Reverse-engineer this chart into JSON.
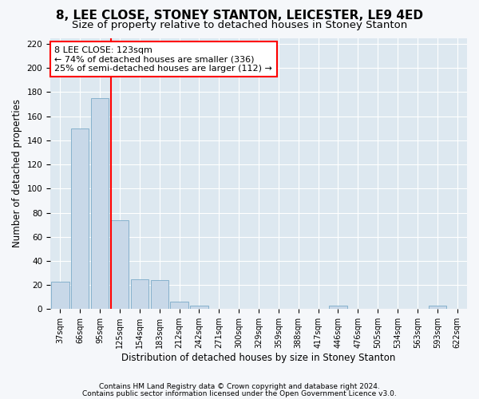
{
  "title": "8, LEE CLOSE, STONEY STANTON, LEICESTER, LE9 4ED",
  "subtitle": "Size of property relative to detached houses in Stoney Stanton",
  "xlabel": "Distribution of detached houses by size in Stoney Stanton",
  "ylabel": "Number of detached properties",
  "categories": [
    "37sqm",
    "66sqm",
    "95sqm",
    "125sqm",
    "154sqm",
    "183sqm",
    "212sqm",
    "242sqm",
    "271sqm",
    "300sqm",
    "329sqm",
    "359sqm",
    "388sqm",
    "417sqm",
    "446sqm",
    "476sqm",
    "505sqm",
    "534sqm",
    "563sqm",
    "593sqm",
    "622sqm"
  ],
  "values": [
    23,
    150,
    175,
    74,
    25,
    24,
    6,
    3,
    0,
    0,
    0,
    0,
    0,
    0,
    3,
    0,
    0,
    0,
    0,
    3,
    0
  ],
  "bar_color": "#c8d8e8",
  "bar_edge_color": "#7aaac8",
  "red_line_index": 3,
  "annotation_lines": [
    "8 LEE CLOSE: 123sqm",
    "← 74% of detached houses are smaller (336)",
    "25% of semi-detached houses are larger (112) →"
  ],
  "ylim": [
    0,
    225
  ],
  "yticks": [
    0,
    20,
    40,
    60,
    80,
    100,
    120,
    140,
    160,
    180,
    200,
    220
  ],
  "footer1": "Contains HM Land Registry data © Crown copyright and database right 2024.",
  "footer2": "Contains public sector information licensed under the Open Government Licence v3.0.",
  "plot_bg_color": "#dde8f0",
  "fig_bg_color": "#f5f7fa",
  "grid_color": "#ffffff",
  "title_fontsize": 11,
  "subtitle_fontsize": 9.5,
  "tick_fontsize": 7,
  "ylabel_fontsize": 8.5,
  "xlabel_fontsize": 8.5,
  "footer_fontsize": 6.5
}
